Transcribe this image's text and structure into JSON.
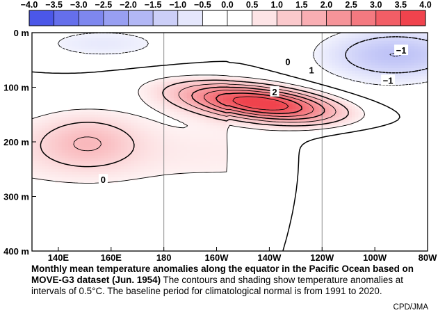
{
  "chart_data": {
    "type": "heatmap",
    "colorbar": {
      "ticks": [
        "−4.0",
        "−3.5",
        "−3.0",
        "−2.5",
        "−2.0",
        "−1.5",
        "−1.0",
        "−0.5",
        "0.0",
        "0.5",
        "1.0",
        "1.5",
        "2.0",
        "2.5",
        "3.0",
        "3.5",
        "4.0"
      ],
      "bins": [
        -3.75,
        -3.25,
        -2.75,
        -2.25,
        -1.75,
        -1.25,
        -0.75,
        -0.25,
        0.25,
        0.75,
        1.25,
        1.75,
        2.25,
        2.75,
        3.25,
        3.75
      ],
      "negative_color": "#4B57E8",
      "positive_color": "#F0434D"
    },
    "x_ticks": [
      "140E",
      "160E",
      "180",
      "160W",
      "140W",
      "120W",
      "100W",
      "80W"
    ],
    "x_tick_longitudes": [
      140,
      160,
      180,
      200,
      220,
      240,
      260,
      280
    ],
    "y_ticks": [
      "0 m",
      "100 m",
      "200 m",
      "300 m",
      "400 m"
    ],
    "y_tick_depths": [
      0,
      100,
      200,
      300,
      400
    ],
    "xlim": [
      130,
      280
    ],
    "ylim": [
      0,
      400
    ],
    "gridlines_x": [
      180,
      240
    ],
    "contour_interval": 0.5,
    "contour_labels": [
      {
        "text": "0",
        "lon": 227,
        "depth": 53
      },
      {
        "text": "1",
        "lon": 236,
        "depth": 68
      },
      {
        "text": "2",
        "lon": 222,
        "depth": 108
      },
      {
        "text": "0",
        "lon": 157,
        "depth": 269
      },
      {
        "text": "−1",
        "lon": 270,
        "depth": 32
      },
      {
        "text": "−1",
        "lon": 265,
        "depth": 87
      }
    ]
  },
  "caption": {
    "title": "Monthly mean temperature anomalies along the equator in the Pacific Ocean based on MOVE-G3 dataset (Jun. 1954)",
    "body": " The contours and shading show temperature anomalies at intervals of 0.5°C.  The baseline period for climatological normal is from 1991 to 2020.",
    "credit": "CPD/JMA"
  }
}
